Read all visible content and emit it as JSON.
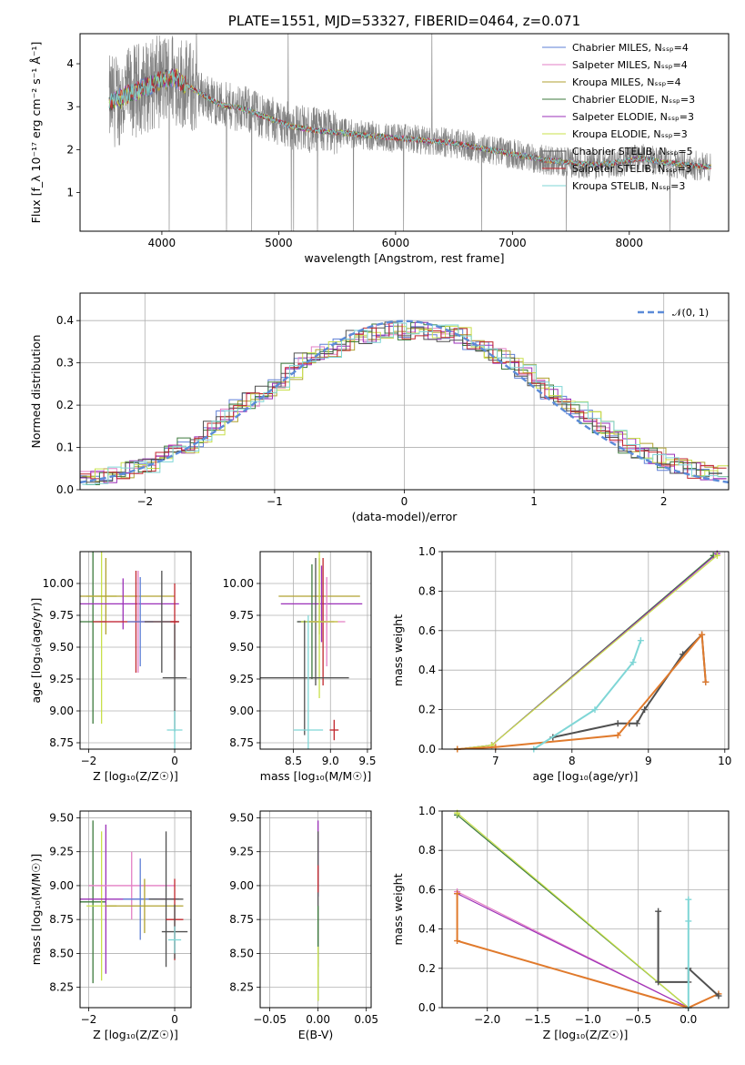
{
  "chart_data": [
    {
      "id": "spectrum",
      "type": "line",
      "title": "PLATE=1551, MJD=53327, FIBERID=0464, z=0.071",
      "xlabel": "wavelength [Angstrom, rest frame]",
      "ylabel": "Flux [f_λ 10⁻¹⁷ erg cm⁻² s⁻¹ Å⁻¹]",
      "xlim": [
        3300,
        8850
      ],
      "ylim": [
        0.1,
        4.7
      ],
      "xticks": [
        4000,
        5000,
        6000,
        7000,
        8000
      ],
      "yticks": [
        1,
        2,
        3,
        4
      ],
      "grid": false,
      "legend_position": "top-right",
      "data_trend": {
        "x": [
          3550,
          3650,
          3800,
          3950,
          4100,
          4300,
          4500,
          4700,
          4900,
          5100,
          5300,
          5500,
          5700,
          5900,
          6100,
          6300,
          6500,
          6700,
          6900,
          7100,
          7300,
          7500,
          7700,
          7900,
          8100,
          8300,
          8500,
          8650
        ],
        "y": [
          3.1,
          3.2,
          3.4,
          3.55,
          3.7,
          3.35,
          3.05,
          2.95,
          2.75,
          2.55,
          2.45,
          2.4,
          2.35,
          2.3,
          2.25,
          2.2,
          2.15,
          2.05,
          1.95,
          1.85,
          1.75,
          1.7,
          1.65,
          1.7,
          1.8,
          1.7,
          1.65,
          1.6
        ]
      },
      "series": [
        {
          "name": "Chabrier MILES, N_SSP=4",
          "color": "#5e7fd6"
        },
        {
          "name": "Salpeter MILES, N_SSP=4",
          "color": "#e37fc4"
        },
        {
          "name": "Kroupa MILES, N_SSP=4",
          "color": "#b0a230"
        },
        {
          "name": "Chabrier ELODIE, N_SSP=3",
          "color": "#3c7a3c"
        },
        {
          "name": "Salpeter ELODIE, N_SSP=3",
          "color": "#9b30b8"
        },
        {
          "name": "Kroupa ELODIE, N_SSP=3",
          "color": "#c8e04a"
        },
        {
          "name": "Chabrier STELIB, N_SSP=5",
          "color": "#505050"
        },
        {
          "name": "Salpeter STELIB, N_SSP=3",
          "color": "#c0272d"
        },
        {
          "name": "Kroupa STELIB, N_SSP=3",
          "color": "#7fd6d6"
        }
      ]
    },
    {
      "id": "residuals",
      "type": "line",
      "xlabel": "(data-model)/error",
      "ylabel": "Normed distribution",
      "xlim": [
        -2.5,
        2.5
      ],
      "ylim": [
        0,
        0.465
      ],
      "xticks": [
        -2,
        -1,
        0,
        1,
        2
      ],
      "yticks": [
        0.0,
        0.1,
        0.2,
        0.3,
        0.4
      ],
      "grid": true,
      "legend_position": "top-right",
      "legend": [
        "𝒩(0, 1)"
      ],
      "bin_edges_start": -2.5,
      "bin_width": 0.1,
      "hist_base": [
        0.025,
        0.03,
        0.035,
        0.045,
        0.05,
        0.06,
        0.075,
        0.09,
        0.105,
        0.12,
        0.145,
        0.175,
        0.2,
        0.21,
        0.235,
        0.255,
        0.28,
        0.305,
        0.325,
        0.33,
        0.345,
        0.36,
        0.365,
        0.375,
        0.385,
        0.37,
        0.38,
        0.375,
        0.37,
        0.365,
        0.35,
        0.33,
        0.315,
        0.3,
        0.28,
        0.255,
        0.23,
        0.205,
        0.19,
        0.17,
        0.15,
        0.125,
        0.105,
        0.09,
        0.08,
        0.065,
        0.055,
        0.045,
        0.04,
        0.045
      ],
      "hist_colors": [
        "#5e7fd6",
        "#e37fc4",
        "#b0a230",
        "#3c7a3c",
        "#9b30b8",
        "#c8e04a",
        "#505050",
        "#c0272d",
        "#7fd6d6"
      ],
      "normal_color": "#5b8bd8"
    },
    {
      "id": "age_vs_Z",
      "type": "scatter",
      "xlabel": "Z [log₁₀(Z/Z☉)]",
      "ylabel": "age  [log₁₀(age/yr)]",
      "xlim": [
        -2.2,
        0.38
      ],
      "ylim": [
        8.7,
        10.25
      ],
      "xticks": [
        -2,
        0
      ],
      "yticks": [
        8.75,
        9.0,
        9.25,
        9.5,
        9.75,
        10.0
      ],
      "grid": true,
      "errorbars": [
        {
          "x": -1.9,
          "y": 9.7,
          "xerr": 0.3,
          "yerr": 0.8,
          "color": "#3c7a3c"
        },
        {
          "x": -1.7,
          "y": 9.9,
          "xerr": 0.35,
          "yerr": 1.0,
          "color": "#c8e04a"
        },
        {
          "x": -1.6,
          "y": 9.9,
          "xerr": 1.6,
          "yerr": 0.3,
          "color": "#b0a230"
        },
        {
          "x": -1.2,
          "y": 9.84,
          "xerr": 1.3,
          "yerr": 0.2,
          "color": "#9b30b8"
        },
        {
          "x": -0.85,
          "y": 9.7,
          "xerr": 0.9,
          "yerr": 0.4,
          "color": "#e37fc4"
        },
        {
          "x": -0.9,
          "y": 9.7,
          "xerr": 1.0,
          "yerr": 0.4,
          "color": "#c0272d"
        },
        {
          "x": -0.8,
          "y": 9.7,
          "xerr": 0.3,
          "yerr": 0.35,
          "color": "#5e7fd6"
        },
        {
          "x": -0.3,
          "y": 9.7,
          "xerr": 0.4,
          "yerr": 0.4,
          "color": "#505050"
        },
        {
          "x": 0.0,
          "y": 9.7,
          "xerr": 0.1,
          "yerr": 0.3,
          "color": "#c0272d"
        },
        {
          "x": 0.0,
          "y": 9.26,
          "xerr": 0.28,
          "yerr": 0.42,
          "color": "#505050"
        },
        {
          "x": 0.0,
          "y": 8.85,
          "xerr": 0.18,
          "yerr": 0.15,
          "color": "#7fd6d6"
        }
      ]
    },
    {
      "id": "age_vs_mass",
      "type": "scatter",
      "xlabel": "mass [log₁₀(M/M☉)]",
      "ylabel": "",
      "xlim": [
        8.05,
        9.55
      ],
      "ylim": [
        8.7,
        10.25
      ],
      "xticks": [
        8.5,
        9.0,
        9.5
      ],
      "yticks": [
        8.75,
        9.0,
        9.25,
        9.5,
        9.75,
        10.0
      ],
      "grid": true,
      "errorbars": [
        {
          "x": 8.85,
          "y": 9.9,
          "xerr": 0.55,
          "yerr": 0.3,
          "color": "#b0a230"
        },
        {
          "x": 8.88,
          "y": 9.84,
          "xerr": 0.55,
          "yerr": 0.3,
          "color": "#9b30b8"
        },
        {
          "x": 8.75,
          "y": 9.7,
          "xerr": 0.2,
          "yerr": 0.45,
          "color": "#3c7a3c"
        },
        {
          "x": 8.8,
          "y": 9.7,
          "xerr": 0.25,
          "yerr": 0.5,
          "color": "#505050"
        },
        {
          "x": 8.9,
          "y": 9.7,
          "xerr": 0.2,
          "yerr": 0.5,
          "color": "#c0272d"
        },
        {
          "x": 8.95,
          "y": 9.7,
          "xerr": 0.25,
          "yerr": 0.35,
          "color": "#e37fc4"
        },
        {
          "x": 8.85,
          "y": 9.7,
          "xerr": 0.25,
          "yerr": 0.6,
          "color": "#c8e04a"
        },
        {
          "x": 8.65,
          "y": 9.26,
          "xerr": 0.6,
          "yerr": 0.45,
          "color": "#505050"
        },
        {
          "x": 8.7,
          "y": 8.85,
          "xerr": 0.2,
          "yerr": 0.9,
          "color": "#7fd6d6"
        },
        {
          "x": 9.05,
          "y": 8.85,
          "xerr": 0.06,
          "yerr": 0.08,
          "color": "#c0272d"
        }
      ]
    },
    {
      "id": "massweight_vs_age",
      "type": "line",
      "xlabel": "age  [log₁₀(age/yr)]",
      "ylabel": "mass weight",
      "xlim": [
        6.3,
        10.05
      ],
      "ylim": [
        0.0,
        1.0
      ],
      "xticks": [
        7,
        8,
        9,
        10
      ],
      "yticks": [
        0.0,
        0.2,
        0.4,
        0.6,
        0.8,
        1.0
      ],
      "grid": true,
      "lines": [
        {
          "color": "#3c7a3c",
          "x": [
            6.5,
            6.95,
            9.85
          ],
          "y": [
            0.0,
            0.02,
            0.98
          ]
        },
        {
          "color": "#9b30b8",
          "x": [
            6.5,
            6.95,
            9.9
          ],
          "y": [
            0.0,
            0.02,
            0.99
          ]
        },
        {
          "color": "#c8e04a",
          "x": [
            6.5,
            6.95,
            9.9
          ],
          "y": [
            0.0,
            0.02,
            0.98
          ]
        },
        {
          "color": "#505050",
          "x": [
            7.75,
            8.6,
            8.75,
            8.85,
            8.95,
            9.45,
            9.7,
            9.75
          ],
          "y": [
            0.06,
            0.13,
            0.13,
            0.13,
            0.2,
            0.48,
            0.58,
            0.34
          ]
        },
        {
          "color": "#e07a2c",
          "x": [
            6.5,
            7.0,
            8.6,
            9.7,
            9.75
          ],
          "y": [
            0.0,
            0.01,
            0.07,
            0.58,
            0.34
          ]
        },
        {
          "color": "#7fd6d6",
          "x": [
            7.5,
            8.3,
            8.8,
            8.9
          ],
          "y": [
            0.0,
            0.2,
            0.44,
            0.55
          ]
        }
      ]
    },
    {
      "id": "mass_vs_Z",
      "type": "scatter",
      "xlabel": "Z [log₁₀(Z/Z☉)]",
      "ylabel": "mass [log₁₀(M/M☉)]",
      "xlim": [
        -2.2,
        0.38
      ],
      "ylim": [
        8.1,
        9.55
      ],
      "xticks": [
        -2,
        0
      ],
      "yticks": [
        8.25,
        8.5,
        8.75,
        9.0,
        9.25,
        9.5
      ],
      "grid": true,
      "errorbars": [
        {
          "x": -1.9,
          "y": 8.88,
          "xerr": 0.3,
          "yerr": 0.6,
          "color": "#3c7a3c"
        },
        {
          "x": -1.7,
          "y": 8.85,
          "xerr": 0.35,
          "yerr": 0.55,
          "color": "#c8e04a"
        },
        {
          "x": -1.6,
          "y": 8.9,
          "xerr": 1.7,
          "yerr": 0.55,
          "color": "#9b30b8"
        },
        {
          "x": -1.0,
          "y": 9.0,
          "xerr": 1.0,
          "yerr": 0.25,
          "color": "#e37fc4"
        },
        {
          "x": -0.8,
          "y": 8.9,
          "xerr": 0.4,
          "yerr": 0.3,
          "color": "#5e7fd6"
        },
        {
          "x": -0.7,
          "y": 8.85,
          "xerr": 0.9,
          "yerr": 0.2,
          "color": "#b0a230"
        },
        {
          "x": -0.2,
          "y": 8.9,
          "xerr": 0.4,
          "yerr": 0.5,
          "color": "#505050"
        },
        {
          "x": 0.0,
          "y": 8.75,
          "xerr": 0.2,
          "yerr": 0.3,
          "color": "#c0272d"
        },
        {
          "x": 0.0,
          "y": 8.66,
          "xerr": 0.3,
          "yerr": 0.2,
          "color": "#505050"
        },
        {
          "x": 0.0,
          "y": 8.6,
          "xerr": 0.15,
          "yerr": 0.1,
          "color": "#7fd6d6"
        }
      ]
    },
    {
      "id": "mass_vs_ebv",
      "type": "scatter",
      "xlabel": "E(B-V)",
      "ylabel": "",
      "xlim": [
        -0.06,
        0.055
      ],
      "ylim": [
        8.1,
        9.55
      ],
      "xticks": [
        -0.05,
        0.0,
        0.05
      ],
      "yticks": [
        8.25,
        8.5,
        8.75,
        9.0,
        9.25,
        9.5
      ],
      "grid": true,
      "errorbars": [
        {
          "x": 0.0,
          "y": 9.2,
          "xerr": 0.0,
          "yerr": 0.28,
          "color": "#9b30b8"
        },
        {
          "x": 0.0,
          "y": 8.9,
          "xerr": 0.0,
          "yerr": 0.5,
          "color": "#505050"
        },
        {
          "x": 0.0,
          "y": 9.05,
          "xerr": 0.0,
          "yerr": 0.1,
          "color": "#c0272d"
        },
        {
          "x": 0.0,
          "y": 8.5,
          "xerr": 0.0,
          "yerr": 0.35,
          "color": "#3c7a3c"
        },
        {
          "x": 0.0,
          "y": 8.35,
          "xerr": 0.0,
          "yerr": 0.2,
          "color": "#c8e04a"
        }
      ]
    },
    {
      "id": "massweight_vs_Z",
      "type": "line",
      "xlabel": "Z [log₁₀(Z/Z☉)]",
      "ylabel": "mass weight",
      "xlim": [
        -2.45,
        0.4
      ],
      "ylim": [
        0.0,
        1.0
      ],
      "xticks": [
        -2.0,
        -1.5,
        -1.0,
        -0.5,
        0.0
      ],
      "yticks": [
        0.0,
        0.2,
        0.4,
        0.6,
        0.8,
        1.0
      ],
      "grid": true,
      "lines": [
        {
          "color": "#3c7a3c",
          "x": [
            -2.3,
            0.0
          ],
          "y": [
            0.98,
            0.0
          ]
        },
        {
          "color": "#c8e04a",
          "x": [
            -2.3,
            0.0
          ],
          "y": [
            0.99,
            0.0
          ]
        },
        {
          "color": "#e37fc4",
          "x": [
            -2.3,
            0.0
          ],
          "y": [
            0.59,
            0.0
          ]
        },
        {
          "color": "#9b30b8",
          "x": [
            -2.3,
            0.0
          ],
          "y": [
            0.58,
            0.0
          ]
        },
        {
          "color": "#e07a2c",
          "x": [
            -2.3,
            -2.3,
            0.0,
            0.3
          ],
          "y": [
            0.58,
            0.34,
            0.0,
            0.07
          ]
        },
        {
          "color": "#505050",
          "x": [
            -0.3,
            -0.3,
            0.0,
            0.0,
            0.3
          ],
          "y": [
            0.49,
            0.13,
            0.13,
            0.2,
            0.06
          ]
        },
        {
          "color": "#7fd6d6",
          "x": [
            0.0,
            0.0,
            0.0
          ],
          "y": [
            0.0,
            0.44,
            0.55
          ]
        }
      ]
    }
  ]
}
